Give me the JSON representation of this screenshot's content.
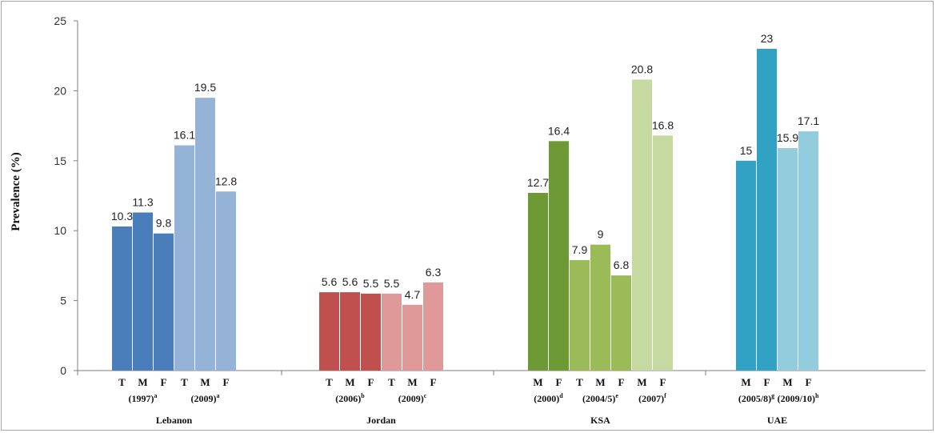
{
  "chart_data": {
    "type": "bar",
    "title": "",
    "ylabel": "Prevalence (%)",
    "ylim": [
      0,
      25
    ],
    "yticks": [
      0,
      5,
      10,
      15,
      20,
      25
    ],
    "grid": false,
    "legend": "none",
    "countries": [
      {
        "name": "Lebanon",
        "studies": [
          {
            "year": "(1997)",
            "sup": "a",
            "color": "#4a7ebb",
            "bars": [
              {
                "label": "T",
                "value": 10.3
              },
              {
                "label": "M",
                "value": 11.3
              },
              {
                "label": "F",
                "value": 9.8
              }
            ]
          },
          {
            "year": "(2009)",
            "sup": "a",
            "color": "#95b3d7",
            "bars": [
              {
                "label": "T",
                "value": 16.1
              },
              {
                "label": "M",
                "value": 19.5
              },
              {
                "label": "F",
                "value": 12.8
              }
            ]
          }
        ]
      },
      {
        "name": "Jordan",
        "studies": [
          {
            "year": "(2006)",
            "sup": "b",
            "color": "#c0504d",
            "bars": [
              {
                "label": "T",
                "value": 5.6
              },
              {
                "label": "M",
                "value": 5.6
              },
              {
                "label": "F",
                "value": 5.5
              }
            ]
          },
          {
            "year": "(2009)",
            "sup": "c",
            "color": "#de9998",
            "bars": [
              {
                "label": "T",
                "value": 5.5
              },
              {
                "label": "M",
                "value": 4.7
              },
              {
                "label": "F",
                "value": 6.3
              }
            ]
          }
        ]
      },
      {
        "name": "KSA",
        "studies": [
          {
            "year": "(2000)",
            "sup": "d",
            "color": "#6e9a35",
            "bars": [
              {
                "label": "M",
                "value": 12.7
              },
              {
                "label": "F",
                "value": 16.4
              }
            ]
          },
          {
            "year": "(2004/5)",
            "sup": "e",
            "color": "#9bbb59",
            "bars": [
              {
                "label": "T",
                "value": 7.9
              },
              {
                "label": "M",
                "value": 9
              },
              {
                "label": "F",
                "value": 6.8
              }
            ]
          },
          {
            "year": "(2007)",
            "sup": "f",
            "color": "#c6d9a0",
            "bars": [
              {
                "label": "M",
                "value": 20.8
              },
              {
                "label": "F",
                "value": 16.8
              }
            ]
          }
        ]
      },
      {
        "name": "UAE",
        "studies": [
          {
            "year": "(2005/8)",
            "sup": "g",
            "color": "#31a1c4",
            "bars": [
              {
                "label": "M",
                "value": 15
              },
              {
                "label": "F",
                "value": 23
              }
            ]
          },
          {
            "year": "(2009/10)",
            "sup": "h",
            "color": "#93cddd",
            "bars": [
              {
                "label": "M",
                "value": 15.9
              },
              {
                "label": "F",
                "value": 17.1
              }
            ]
          }
        ]
      }
    ]
  }
}
